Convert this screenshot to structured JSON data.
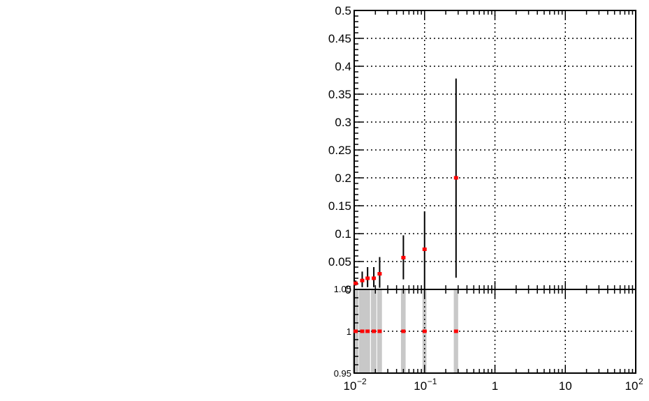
{
  "chart_data": [
    {
      "type": "scatter",
      "panel": "main",
      "title": "",
      "xlabel": "",
      "ylabel": "",
      "x_scale": "log",
      "xlim": [
        0.01,
        100
      ],
      "ylim": [
        0,
        0.5
      ],
      "grid": true,
      "x_tick_labels": [
        {
          "value": 0.01,
          "base": "10",
          "exponent": "−2"
        },
        {
          "value": 0.1,
          "base": "10",
          "exponent": "−1"
        },
        {
          "value": 1,
          "base": "1",
          "exponent": ""
        },
        {
          "value": 10,
          "base": "10",
          "exponent": ""
        },
        {
          "value": 100,
          "base": "10",
          "exponent": "2"
        }
      ],
      "y_tick_labels": [
        {
          "value": 0.05,
          "label": "0.05"
        },
        {
          "value": 0.1,
          "label": "0.1"
        },
        {
          "value": 0.15,
          "label": "0.15"
        },
        {
          "value": 0.2,
          "label": "0.2"
        },
        {
          "value": 0.25,
          "label": "0.25"
        },
        {
          "value": 0.3,
          "label": "0.3"
        },
        {
          "value": 0.35,
          "label": "0.35"
        },
        {
          "value": 0.4,
          "label": "0.4"
        },
        {
          "value": 0.45,
          "label": "0.45"
        },
        {
          "value": 0.5,
          "label": "0.5"
        }
      ],
      "points": [
        {
          "x": 0.0105,
          "y": 0.011,
          "y_low": 0.007,
          "y_high": 0.016
        },
        {
          "x": 0.013,
          "y": 0.016,
          "y_low": 0.004,
          "y_high": 0.032
        },
        {
          "x": 0.0155,
          "y": 0.02,
          "y_low": 0.004,
          "y_high": 0.04
        },
        {
          "x": 0.019,
          "y": 0.02,
          "y_low": 0.004,
          "y_high": 0.04
        },
        {
          "x": 0.023,
          "y": 0.028,
          "y_low": 0.003,
          "y_high": 0.058
        },
        {
          "x": 0.05,
          "y": 0.057,
          "y_low": 0.018,
          "y_high": 0.097
        },
        {
          "x": 0.1,
          "y": 0.072,
          "y_low": 0.0,
          "y_high": 0.14
        },
        {
          "x": 0.28,
          "y": 0.2,
          "y_low": 0.021,
          "y_high": 0.378
        }
      ],
      "marker_color": "#ff0000",
      "error_bar_color": "#000000"
    },
    {
      "type": "scatter",
      "panel": "ratio",
      "title": "",
      "xlabel": "",
      "ylabel": "",
      "x_scale": "log",
      "xlim": [
        0.01,
        100
      ],
      "ylim": [
        0.95,
        1.05
      ],
      "grid": true,
      "y_tick_labels": [
        {
          "value": 0.95,
          "label": "0.95"
        },
        {
          "value": 1,
          "label": "1"
        },
        {
          "value": 1.05,
          "label": "1.05"
        }
      ],
      "points": [
        {
          "x": 0.0105,
          "y": 1
        },
        {
          "x": 0.013,
          "y": 1
        },
        {
          "x": 0.0155,
          "y": 1
        },
        {
          "x": 0.019,
          "y": 1
        },
        {
          "x": 0.023,
          "y": 1
        },
        {
          "x": 0.05,
          "y": 1
        },
        {
          "x": 0.1,
          "y": 1
        },
        {
          "x": 0.28,
          "y": 1
        }
      ],
      "bands": [
        {
          "x_low": 0.0095,
          "x_high": 0.0115
        },
        {
          "x_low": 0.0117,
          "x_high": 0.0143
        },
        {
          "x_low": 0.0142,
          "x_high": 0.0168
        },
        {
          "x_low": 0.0173,
          "x_high": 0.0207
        },
        {
          "x_low": 0.0212,
          "x_high": 0.0248
        },
        {
          "x_low": 0.0462,
          "x_high": 0.0538
        },
        {
          "x_low": 0.0935,
          "x_high": 0.1065
        },
        {
          "x_low": 0.26,
          "x_high": 0.3
        }
      ],
      "band_color": "#c8c8c8",
      "marker_color": "#ff0000"
    }
  ]
}
